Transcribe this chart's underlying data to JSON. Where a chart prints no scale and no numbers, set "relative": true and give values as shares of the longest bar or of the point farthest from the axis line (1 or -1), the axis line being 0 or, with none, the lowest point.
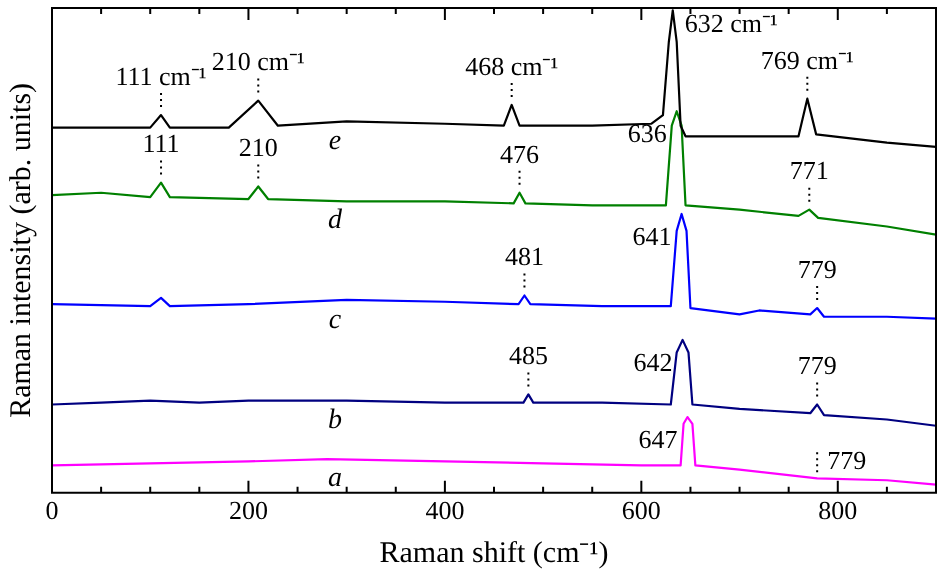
{
  "chart_data": {
    "type": "line",
    "relative": true,
    "xlabel": "Raman shift (cm⁻¹)",
    "ylabel": "Raman intensity (arb. units)",
    "xlim": [
      0,
      900
    ],
    "xticks": [
      0,
      {
        "value": 50,
        "label": null
      },
      {
        "value": 100,
        "label": null
      },
      {
        "value": 150,
        "label": null
      },
      200,
      {
        "value": 250,
        "label": null
      },
      {
        "value": 300,
        "label": null
      },
      {
        "value": 350,
        "label": null
      },
      400,
      {
        "value": 450,
        "label": null
      },
      {
        "value": 500,
        "label": null
      },
      {
        "value": 550,
        "label": null
      },
      600,
      {
        "value": 650,
        "label": null
      },
      {
        "value": 700,
        "label": null
      },
      {
        "value": 750,
        "label": null
      },
      800,
      {
        "value": 850,
        "label": null
      },
      {
        "value": 900,
        "label": null
      }
    ],
    "grid": false,
    "legend": false,
    "marker": "none",
    "line_style": "solid",
    "series": [
      {
        "name": "e",
        "color": "#000000",
        "x": [
          0,
          50,
          100,
          111,
          120,
          180,
          210,
          230,
          300,
          400,
          460,
          468,
          476,
          550,
          610,
          622,
          628,
          632,
          636,
          640,
          645,
          700,
          760,
          769,
          778,
          850,
          900
        ],
        "values": [
          0.757,
          0.757,
          0.757,
          0.783,
          0.757,
          0.757,
          0.813,
          0.761,
          0.77,
          0.765,
          0.761,
          0.804,
          0.761,
          0.761,
          0.765,
          0.783,
          0.935,
          1.0,
          0.935,
          0.761,
          0.739,
          0.739,
          0.739,
          0.817,
          0.743,
          0.726,
          0.717
        ]
      },
      {
        "name": "d",
        "color": "#008000",
        "x": [
          0,
          50,
          100,
          111,
          120,
          200,
          210,
          220,
          300,
          400,
          470,
          476,
          482,
          550,
          625,
          631,
          636,
          641,
          645,
          700,
          760,
          771,
          780,
          850,
          900
        ],
        "values": [
          0.617,
          0.622,
          0.613,
          0.643,
          0.613,
          0.609,
          0.635,
          0.609,
          0.604,
          0.604,
          0.6,
          0.622,
          0.6,
          0.596,
          0.596,
          0.761,
          0.791,
          0.761,
          0.596,
          0.587,
          0.574,
          0.587,
          0.57,
          0.552,
          0.535
        ]
      },
      {
        "name": "c",
        "color": "#0000ff",
        "x": [
          0,
          100,
          111,
          120,
          200,
          300,
          400,
          475,
          481,
          487,
          560,
          630,
          636,
          641,
          646,
          650,
          700,
          720,
          772,
          779,
          786,
          850,
          900
        ],
        "values": [
          0.391,
          0.387,
          0.404,
          0.387,
          0.391,
          0.4,
          0.396,
          0.391,
          0.409,
          0.391,
          0.387,
          0.387,
          0.543,
          0.578,
          0.543,
          0.383,
          0.37,
          0.378,
          0.37,
          0.383,
          0.365,
          0.365,
          0.361
        ]
      },
      {
        "name": "b",
        "color": "#000080",
        "x": [
          0,
          50,
          100,
          150,
          200,
          300,
          400,
          480,
          485,
          490,
          560,
          630,
          636,
          642,
          648,
          652,
          700,
          772,
          779,
          786,
          850,
          900
        ],
        "values": [
          0.183,
          0.187,
          0.191,
          0.187,
          0.191,
          0.191,
          0.187,
          0.187,
          0.204,
          0.187,
          0.187,
          0.183,
          0.291,
          0.317,
          0.291,
          0.183,
          0.174,
          0.165,
          0.183,
          0.161,
          0.152,
          0.139
        ]
      },
      {
        "name": "a",
        "color": "#ff00ff",
        "x": [
          0,
          100,
          200,
          280,
          400,
          500,
          600,
          640,
          643,
          647,
          652,
          655,
          700,
          779,
          850,
          900
        ],
        "values": [
          0.057,
          0.061,
          0.065,
          0.07,
          0.065,
          0.061,
          0.057,
          0.057,
          0.143,
          0.157,
          0.143,
          0.057,
          0.048,
          0.03,
          0.026,
          0.017
        ]
      }
    ],
    "annotations": [
      {
        "text": "111 cm⁻¹",
        "x": 111,
        "y": 0.783
      },
      {
        "text": "210 cm⁻¹",
        "x": 210,
        "y": 0.813
      },
      {
        "text": "468 cm⁻¹",
        "x": 468,
        "y": 0.804
      },
      {
        "text": "632 cm⁻¹",
        "x": 632,
        "y": 1.0
      },
      {
        "text": "769 cm⁻¹",
        "x": 769,
        "y": 0.817
      },
      {
        "text": "636",
        "x": 636,
        "y": 0.791
      },
      {
        "text": "111",
        "x": 111,
        "y": 0.643
      },
      {
        "text": "210",
        "x": 210,
        "y": 0.635
      },
      {
        "text": "476",
        "x": 476,
        "y": 0.622
      },
      {
        "text": "771",
        "x": 771,
        "y": 0.587
      },
      {
        "text": "641",
        "x": 641,
        "y": 0.578
      },
      {
        "text": "481",
        "x": 481,
        "y": 0.409
      },
      {
        "text": "779",
        "x": 779,
        "y": 0.383
      },
      {
        "text": "642",
        "x": 642,
        "y": 0.317
      },
      {
        "text": "485",
        "x": 485,
        "y": 0.204
      },
      {
        "text": "779",
        "x": 779,
        "y": 0.183
      },
      {
        "text": "647",
        "x": 647,
        "y": 0.157
      },
      {
        "text": "779",
        "x": 779,
        "y": 0.03
      }
    ]
  }
}
